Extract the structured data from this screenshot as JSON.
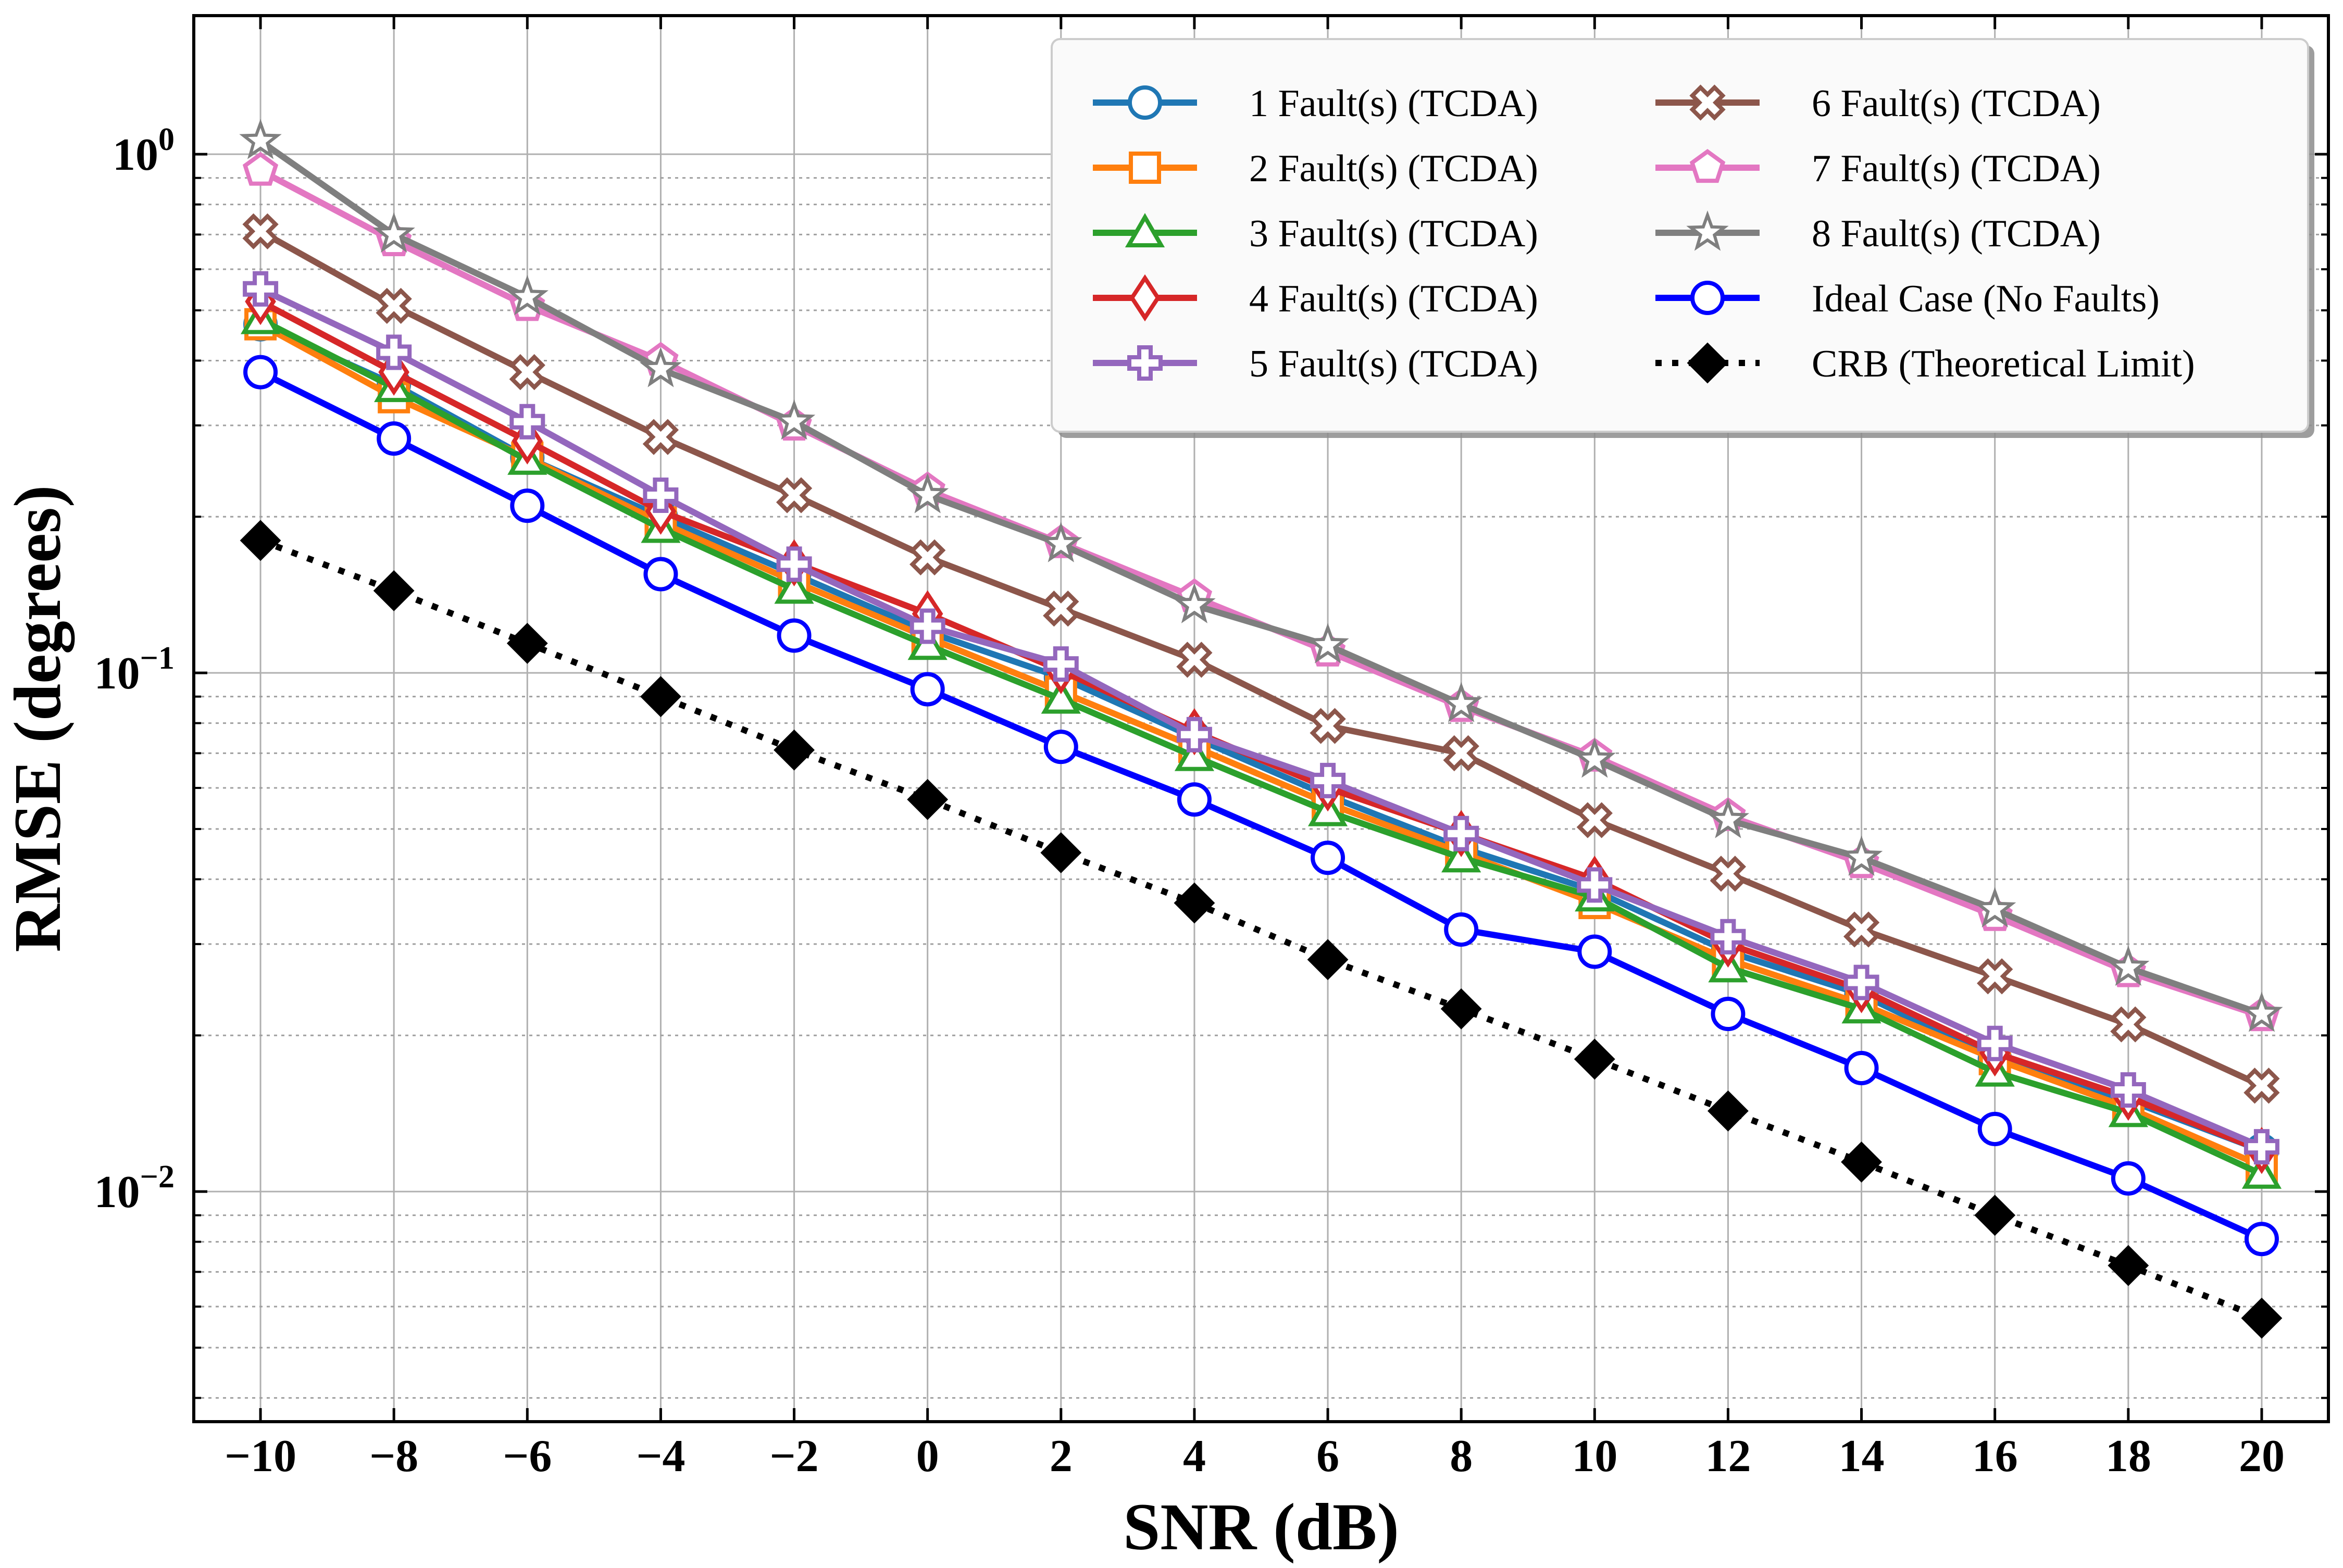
{
  "chart_data": {
    "type": "line",
    "xlabel": "SNR (dB)",
    "ylabel": "RMSE (degrees)",
    "yscale": "log",
    "xlim": [
      -11,
      21
    ],
    "ylim": [
      0.0036,
      1.85
    ],
    "x": [
      -10,
      -8,
      -6,
      -4,
      -2,
      0,
      2,
      4,
      6,
      8,
      10,
      12,
      14,
      16,
      18,
      20
    ],
    "xticks": [
      -10,
      -8,
      -6,
      -4,
      -2,
      0,
      2,
      4,
      6,
      8,
      10,
      12,
      14,
      16,
      18,
      20
    ],
    "xtick_labels": [
      "−10",
      "−8",
      "−6",
      "−4",
      "−2",
      "0",
      "2",
      "4",
      "6",
      "8",
      "10",
      "12",
      "14",
      "16",
      "18",
      "20"
    ],
    "yticks": [
      {
        "value": 1,
        "base": "10",
        "exp": "0"
      },
      {
        "value": 0.1,
        "base": "10",
        "exp": "−1"
      },
      {
        "value": 0.01,
        "base": "10",
        "exp": "−2"
      }
    ],
    "grid": true,
    "legend_position": "top-right",
    "series": [
      {
        "name": "1 Fault(s) (TCDA)",
        "color": "#1f77b4",
        "marker": "circle",
        "dash": "solid",
        "values": [
          0.47,
          0.36,
          0.26,
          0.2,
          0.155,
          0.12,
          0.098,
          0.075,
          0.058,
          0.046,
          0.038,
          0.029,
          0.024,
          0.018,
          0.015,
          0.012
        ]
      },
      {
        "name": "2 Fault(s) (TCDA)",
        "color": "#ff7f0e",
        "marker": "square",
        "dash": "solid",
        "values": [
          0.47,
          0.34,
          0.26,
          0.195,
          0.15,
          0.117,
          0.092,
          0.072,
          0.056,
          0.045,
          0.036,
          0.028,
          0.023,
          0.018,
          0.0145,
          0.0112
        ]
      },
      {
        "name": "3 Fault(s) (TCDA)",
        "color": "#2ca02c",
        "marker": "triangle",
        "dash": "solid",
        "values": [
          0.48,
          0.355,
          0.257,
          0.19,
          0.145,
          0.113,
          0.089,
          0.069,
          0.054,
          0.044,
          0.037,
          0.027,
          0.0225,
          0.017,
          0.0142,
          0.0108
        ]
      },
      {
        "name": "4 Fault(s) (TCDA)",
        "color": "#d62728",
        "marker": "diamond",
        "dash": "solid",
        "values": [
          0.52,
          0.38,
          0.28,
          0.205,
          0.163,
          0.13,
          0.101,
          0.077,
          0.06,
          0.049,
          0.04,
          0.03,
          0.0245,
          0.0185,
          0.0152,
          0.012
        ]
      },
      {
        "name": "5 Fault(s) (TCDA)",
        "color": "#9467bd",
        "marker": "plus",
        "dash": "solid",
        "values": [
          0.55,
          0.415,
          0.305,
          0.22,
          0.162,
          0.123,
          0.104,
          0.076,
          0.062,
          0.049,
          0.039,
          0.031,
          0.0253,
          0.0193,
          0.0157,
          0.0122
        ]
      },
      {
        "name": "6 Fault(s) (TCDA)",
        "color": "#8c564b",
        "marker": "x",
        "dash": "solid",
        "values": [
          0.71,
          0.51,
          0.38,
          0.285,
          0.22,
          0.167,
          0.133,
          0.106,
          0.079,
          0.07,
          0.052,
          0.041,
          0.032,
          0.026,
          0.021,
          0.016
        ]
      },
      {
        "name": "7 Fault(s) (TCDA)",
        "color": "#e377c2",
        "marker": "pentagon",
        "dash": "solid",
        "values": [
          0.93,
          0.68,
          0.51,
          0.4,
          0.3,
          0.225,
          0.178,
          0.14,
          0.11,
          0.086,
          0.069,
          0.053,
          0.043,
          0.034,
          0.0265,
          0.0218
        ]
      },
      {
        "name": "8 Fault(s) (TCDA)",
        "color": "#7f7f7f",
        "marker": "star",
        "dash": "solid",
        "values": [
          1.06,
          0.7,
          0.53,
          0.385,
          0.305,
          0.22,
          0.177,
          0.135,
          0.113,
          0.087,
          0.068,
          0.052,
          0.044,
          0.035,
          0.027,
          0.022
        ]
      },
      {
        "name": "Ideal Case (No Faults)",
        "color": "#0000ff",
        "marker": "circle",
        "dash": "solid",
        "values": [
          0.38,
          0.283,
          0.21,
          0.155,
          0.118,
          0.093,
          0.072,
          0.057,
          0.044,
          0.032,
          0.029,
          0.022,
          0.0173,
          0.0132,
          0.0106,
          0.0081
        ]
      },
      {
        "name": "CRB (Theoretical Limit)",
        "color": "#000000",
        "marker": "diamond-filled",
        "dash": "dotted",
        "values": [
          0.18,
          0.144,
          0.114,
          0.09,
          0.071,
          0.057,
          0.045,
          0.036,
          0.028,
          0.0225,
          0.018,
          0.0143,
          0.0114,
          0.009,
          0.0072,
          0.0057
        ]
      }
    ]
  }
}
